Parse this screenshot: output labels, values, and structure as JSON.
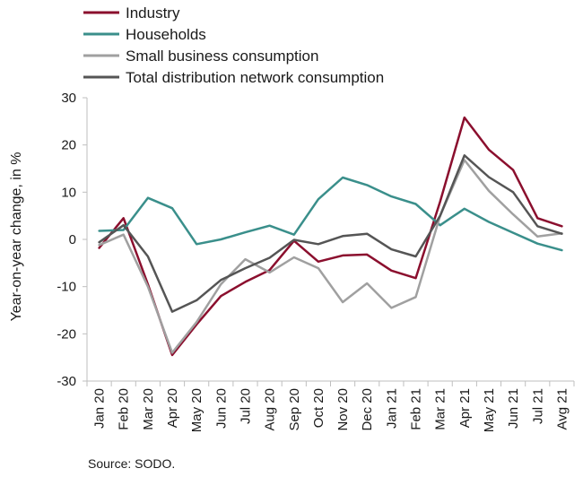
{
  "chart_data": {
    "type": "line",
    "categories": [
      "Jan 20",
      "Feb 20",
      "Mar 20",
      "Apr 20",
      "May 20",
      "Jun 20",
      "Jul 20",
      "Aug 20",
      "Sep 20",
      "Oct 20",
      "Nov 20",
      "Dec 20",
      "Jan 21",
      "Feb 21",
      "Mar 21",
      "Apr 21",
      "May 21",
      "Jun 21",
      "Jul 21",
      "Avg 21"
    ],
    "ylabel": "Year-on-year change, in %",
    "ylim": [
      -30,
      30
    ],
    "yticks": [
      -30,
      -20,
      -10,
      0,
      10,
      20,
      30
    ],
    "grid": false,
    "legend_position": "top-left",
    "source": "Source: SODO.",
    "series": [
      {
        "name": "Industry",
        "color": "#8b0f2e",
        "values": [
          -1.8,
          4.5,
          -9.5,
          -24.5,
          -18,
          -12,
          -9,
          -6.5,
          -0.3,
          -4.7,
          -3.4,
          -3.2,
          -6.6,
          -8.2,
          8,
          25.8,
          19,
          14.7,
          4.5,
          2.8
        ]
      },
      {
        "name": "Households",
        "color": "#3a8f8b",
        "values": [
          1.8,
          2,
          8.8,
          6.6,
          -1,
          0,
          1.5,
          2.9,
          1,
          8.5,
          13.1,
          11.5,
          9.1,
          7.5,
          3,
          6.5,
          3.7,
          1.4,
          -0.9,
          -2.3
        ]
      },
      {
        "name": "Small business consumption",
        "color": "#a0a0a0",
        "values": [
          -1.2,
          1,
          -10,
          -24,
          -17.5,
          -9.5,
          -4.2,
          -7,
          -3.8,
          -6.1,
          -13.3,
          -9.3,
          -14.5,
          -12.2,
          5,
          16.8,
          10.3,
          5.3,
          0.6,
          1.3
        ]
      },
      {
        "name": "Total distribution network consumption",
        "color": "#555555",
        "values": [
          -0.6,
          3,
          -3.6,
          -15.3,
          -12.9,
          -8.6,
          -6.1,
          -3.9,
          -0.1,
          -1,
          0.7,
          1.2,
          -2.1,
          -3.6,
          5,
          17.8,
          13.2,
          10,
          2.8,
          1.2
        ]
      }
    ]
  }
}
